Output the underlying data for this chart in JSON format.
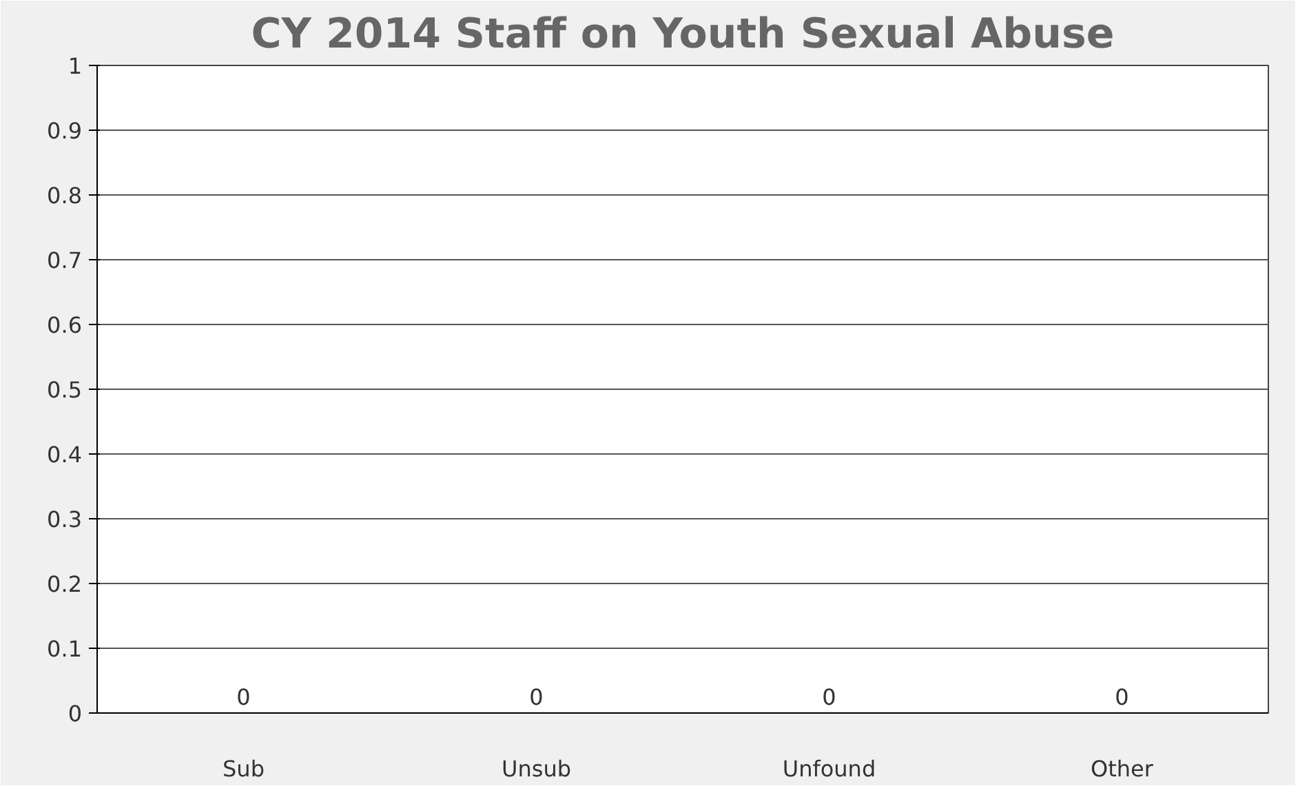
{
  "chart_data": {
    "type": "bar",
    "title": "CY 2014 Staff on Youth Sexual Abuse",
    "categories": [
      "Sub",
      "Unsub",
      "Unfound",
      "Other"
    ],
    "values": [
      0,
      0,
      0,
      0
    ],
    "ylim": [
      0,
      1
    ],
    "yticks": [
      0,
      0.1,
      0.2,
      0.3,
      0.4,
      0.5,
      0.6,
      0.7,
      0.8,
      0.9,
      1
    ],
    "grid": "y",
    "data_labels": true
  }
}
